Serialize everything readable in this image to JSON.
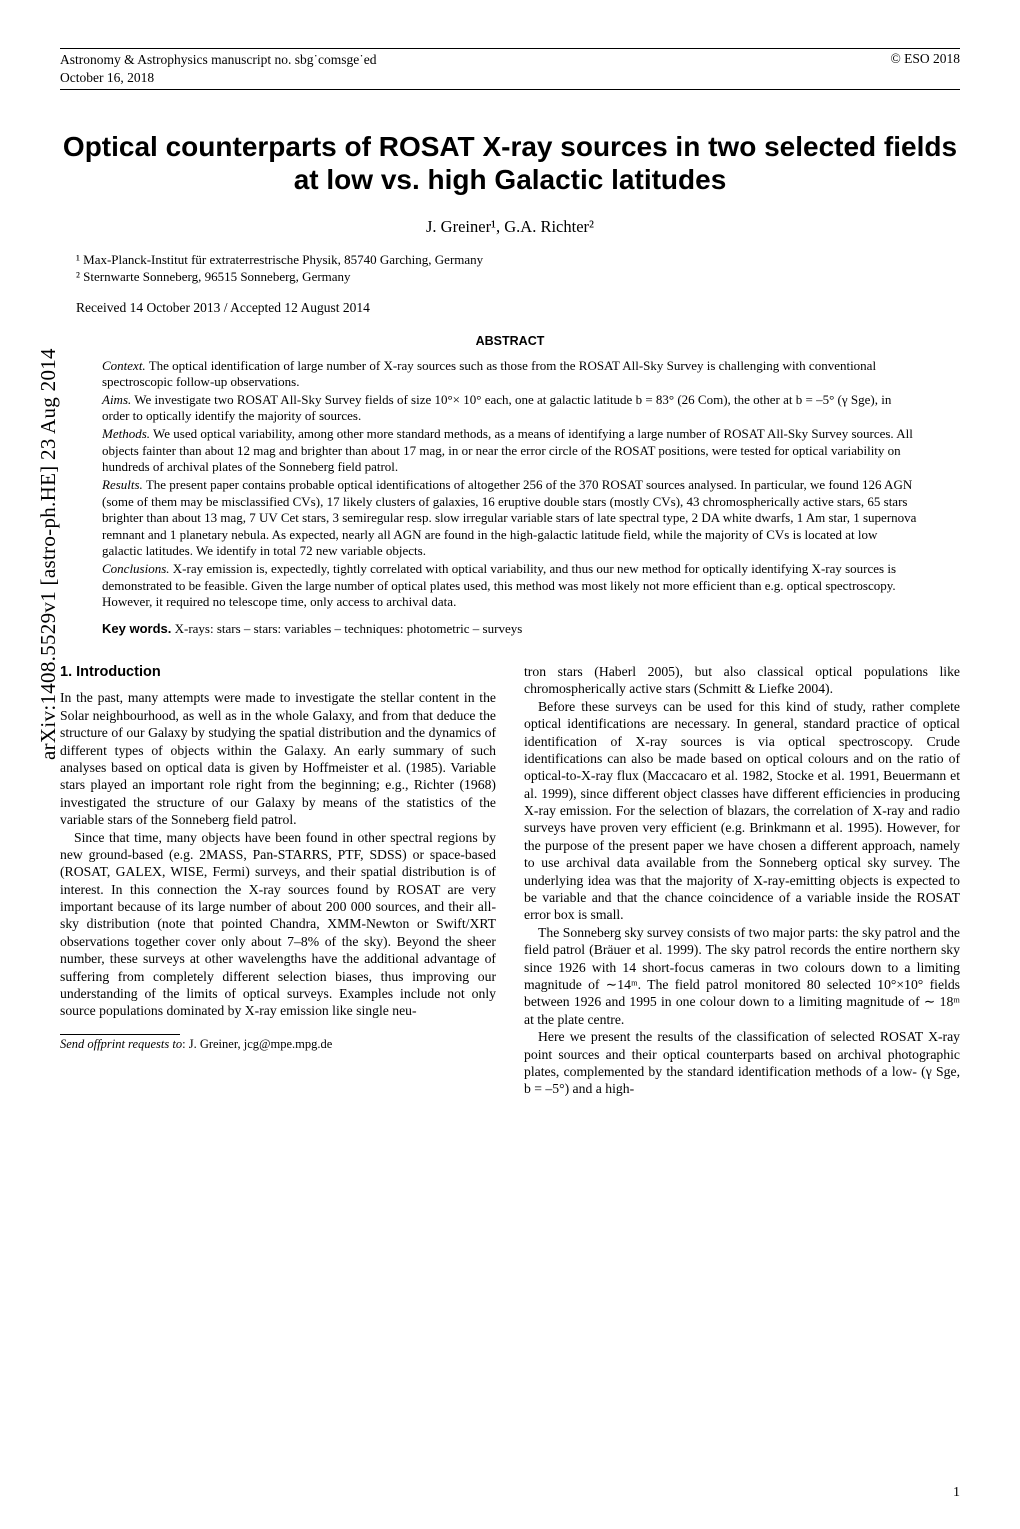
{
  "header": {
    "manuscript_line": "Astronomy & Astrophysics manuscript no. sbg˙comsge˙ed",
    "date_line": "October 16, 2018",
    "copyright": "© ESO 2018"
  },
  "title_line1": "Optical counterparts of ROSAT X-ray sources in two selected fields",
  "title_line2": "at low vs. high Galactic latitudes",
  "authors": "J. Greiner¹, G.A. Richter²",
  "affil1": "¹  Max-Planck-Institut für extraterrestrische Physik, 85740 Garching, Germany",
  "affil2": "²  Sternwarte Sonneberg, 96515 Sonneberg, Germany",
  "received": "Received 14 October 2013 / Accepted 12 August 2014",
  "abstract_heading": "ABSTRACT",
  "abstract": {
    "context_label": "Context.",
    "context": "The optical identification of large number of X-ray sources such as those from the ROSAT All-Sky Survey is challenging with conventional spectroscopic follow-up observations.",
    "aims_label": "Aims.",
    "aims": "We investigate two ROSAT All-Sky Survey fields of size 10°× 10° each, one at galactic latitude b = 83° (26 Com), the other at b = –5° (γ Sge), in order to optically identify the majority of sources.",
    "methods_label": "Methods.",
    "methods": "We used optical variability, among other more standard methods, as a means of identifying a large number of ROSAT All-Sky Survey sources. All objects fainter than about 12 mag and brighter than about 17 mag, in or near the error circle of the ROSAT positions, were tested for optical variability on hundreds of archival plates of the Sonneberg field patrol.",
    "results_label": "Results.",
    "results": "The present paper contains probable optical identifications of altogether 256 of the 370 ROSAT sources analysed. In particular, we found 126 AGN (some of them may be misclassified CVs), 17 likely clusters of galaxies, 16 eruptive double stars (mostly CVs), 43 chromospherically active stars, 65 stars brighter than about 13 mag, 7 UV Cet stars, 3 semiregular resp. slow irregular variable stars of late spectral type, 2 DA white dwarfs, 1 Am star, 1 supernova remnant and 1 planetary nebula. As expected, nearly all AGN are found in the high-galactic latitude field, while the majority of CVs is located at low galactic latitudes. We identify in total 72 new variable objects.",
    "conclusions_label": "Conclusions.",
    "conclusions": "X-ray emission is, expectedly, tightly correlated with optical variability, and thus our new method for optically identifying X-ray sources is demonstrated to be feasible. Given the large number of optical plates used, this method was most likely not more efficient than e.g. optical spectroscopy. However, it required no telescope time, only access to archival data."
  },
  "keywords_label": "Key words.",
  "keywords": "X-rays: stars – stars: variables – techniques: photometric – surveys",
  "section1_heading": "1. Introduction",
  "col_left": {
    "p1": "In the past, many attempts were made to investigate the stellar content in the Solar neighbourhood, as well as in the whole Galaxy, and from that deduce the structure of our Galaxy by studying the spatial distribution and the dynamics of different types of objects within the Galaxy. An early summary of such analyses based on optical data is given by Hoffmeister et al. (1985). Variable stars played an important role right from the beginning; e.g., Richter (1968) investigated the structure of our Galaxy by means of the statistics of the variable stars of the Sonneberg field patrol.",
    "p2": "Since that time, many objects have been found in other spectral regions by new ground-based (e.g. 2MASS, Pan-STARRS, PTF, SDSS) or space-based (ROSAT, GALEX, WISE, Fermi) surveys, and their spatial distribution is of interest. In this connection the X-ray sources found by ROSAT are very important because of its large number of about 200 000 sources, and their all-sky distribution (note that pointed Chandra, XMM-Newton or Swift/XRT observations together cover only about 7–8% of the sky). Beyond the sheer number, these surveys at other wavelengths have the additional advantage of suffering from completely different selection biases, thus improving our understanding of the limits of optical surveys. Examples include not only source populations dominated by X-ray emission like single neu-"
  },
  "col_right": {
    "p0": "tron stars (Haberl 2005), but also classical optical populations like chromospherically active stars (Schmitt & Liefke 2004).",
    "p1": "Before these surveys can be used for this kind of study, rather complete optical identifications are necessary. In general, standard practice of optical identification of X-ray sources is via optical spectroscopy. Crude identifications can also be made based on optical colours and on the ratio of optical-to-X-ray flux (Maccacaro et al. 1982, Stocke et al. 1991, Beuermann et al. 1999), since different object classes have different efficiencies in producing X-ray emission. For the selection of blazars, the correlation of X-ray and radio surveys have proven very efficient (e.g. Brinkmann et al. 1995). However, for the purpose of the present paper we have chosen a different approach, namely to use archival data available from the Sonneberg optical sky survey. The underlying idea was that the majority of X-ray-emitting objects is expected to be variable and that the chance coincidence of a variable inside the ROSAT error box is small.",
    "p2": "The Sonneberg sky survey consists of two major parts: the sky patrol and the field patrol (Bräuer et al. 1999). The sky patrol records the entire northern sky since 1926 with 14 short-focus cameras in two colours down to a limiting magnitude of ∼14ᵐ. The field patrol monitored 80 selected 10°×10° fields between 1926 and 1995 in one colour down to a limiting magnitude of ∼ 18ᵐ at the plate centre.",
    "p3": "Here we present the results of the classification of selected ROSAT X-ray point sources and their optical counterparts based on archival photographic plates, complemented by the standard identification methods of a low- (γ Sge, b = –5°) and a high-"
  },
  "footnote_label": "Send offprint requests to",
  "footnote_text": ": J. Greiner, jcg@mpe.mpg.de",
  "arxiv_stamp": "arXiv:1408.5529v1  [astro-ph.HE]  23 Aug 2014",
  "page_number": "1"
}
